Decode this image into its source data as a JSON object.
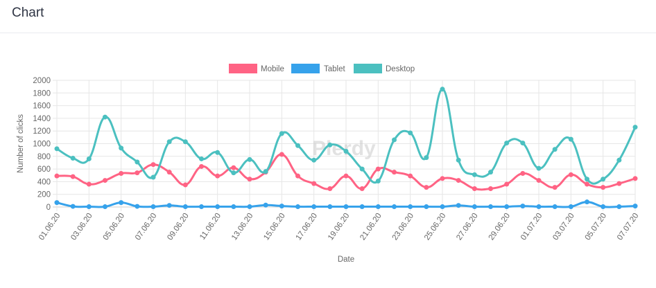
{
  "header": {
    "title": "Chart"
  },
  "watermark": {
    "text": "Plerdy"
  },
  "chart_data": {
    "type": "line",
    "title": "",
    "xlabel": "Date",
    "ylabel": "Number of clicks",
    "ylim": [
      0,
      2000
    ],
    "yticks": [
      0,
      200,
      400,
      600,
      800,
      1000,
      1200,
      1400,
      1600,
      1800,
      2000
    ],
    "grid": true,
    "legend_position": "top",
    "x": [
      "01.06.20",
      "02.06.20",
      "03.06.20",
      "04.06.20",
      "05.06.20",
      "06.06.20",
      "07.06.20",
      "08.06.20",
      "09.06.20",
      "10.06.20",
      "11.06.20",
      "12.06.20",
      "13.06.20",
      "14.06.20",
      "15.06.20",
      "16.06.20",
      "17.06.20",
      "18.06.20",
      "19.06.20",
      "20.06.20",
      "21.06.20",
      "22.06.20",
      "23.06.20",
      "24.06.20",
      "25.06.20",
      "26.06.20",
      "27.06.20",
      "28.06.20",
      "29.06.20",
      "30.06.20",
      "01.07.20",
      "02.07.20",
      "03.07.20",
      "04.07.20",
      "05.07.20",
      "06.07.20",
      "07.07.20"
    ],
    "xtick_labels": [
      "01.06.20",
      "03.06.20",
      "05.06.20",
      "07.06.20",
      "09.06.20",
      "11.06.20",
      "13.06.20",
      "15.06.20",
      "17.06.20",
      "19.06.20",
      "21.06.20",
      "23.06.20",
      "25.06.20",
      "27.06.20",
      "29.06.20",
      "01.07.20",
      "03.07.20",
      "05.07.20",
      "07.07.20"
    ],
    "series": [
      {
        "name": "Mobile",
        "color": "#ff6384",
        "values": [
          490,
          480,
          360,
          420,
          530,
          540,
          670,
          550,
          350,
          640,
          490,
          620,
          440,
          550,
          830,
          490,
          370,
          290,
          490,
          290,
          600,
          550,
          490,
          310,
          450,
          420,
          290,
          290,
          360,
          530,
          420,
          310,
          510,
          360,
          310,
          370,
          450
        ]
      },
      {
        "name": "Tablet",
        "color": "#36a2eb",
        "values": [
          70,
          10,
          5,
          5,
          70,
          10,
          5,
          25,
          5,
          5,
          5,
          5,
          5,
          30,
          15,
          5,
          5,
          5,
          5,
          5,
          5,
          5,
          5,
          5,
          5,
          25,
          5,
          5,
          5,
          15,
          5,
          5,
          5,
          80,
          5,
          5,
          15
        ]
      },
      {
        "name": "Desktop",
        "color": "#4bc0c0",
        "values": [
          920,
          770,
          760,
          1420,
          930,
          710,
          470,
          1030,
          1030,
          760,
          860,
          540,
          750,
          560,
          1160,
          970,
          740,
          980,
          880,
          600,
          410,
          1060,
          1170,
          780,
          1860,
          740,
          510,
          550,
          1010,
          1010,
          610,
          910,
          1070,
          440,
          440,
          740,
          1260
        ]
      }
    ]
  }
}
